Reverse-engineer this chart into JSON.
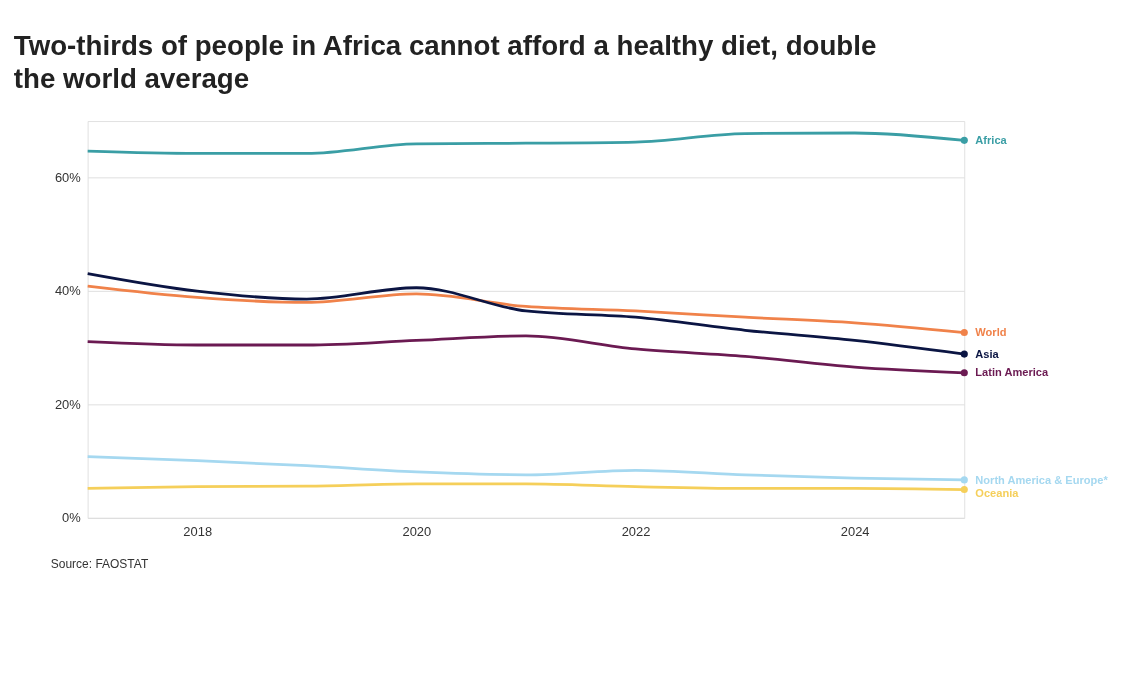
{
  "chart_data": {
    "type": "line",
    "title": "Two-thirds of people in Africa cannot afford a healthy diet, double the world average",
    "x": [
      2017,
      2018,
      2019,
      2020,
      2021,
      2022,
      2023,
      2024,
      2025
    ],
    "xlim": [
      2017,
      2025
    ],
    "xticks": [
      2018,
      2020,
      2022,
      2024
    ],
    "ylim": [
      0,
      70
    ],
    "yticks": [
      {
        "value": 0,
        "label": "0%"
      },
      {
        "value": 20,
        "label": "20%"
      },
      {
        "value": 40,
        "label": "40%"
      },
      {
        "value": 60,
        "label": "60%"
      }
    ],
    "grid": "y",
    "legend": "right",
    "marker": "none",
    "line_style": "solid",
    "series": [
      {
        "name": "Africa",
        "color": "#3a9ea5",
        "values": [
          64.7,
          64.3,
          64.3,
          66.0,
          66.1,
          66.3,
          67.8,
          67.9,
          66.6
        ]
      },
      {
        "name": "World",
        "color": "#f0824a",
        "values": [
          40.9,
          38.9,
          38.0,
          39.5,
          37.3,
          36.5,
          35.4,
          34.4,
          32.7
        ]
      },
      {
        "name": "Asia",
        "color": "#0b1543",
        "values": [
          43.1,
          40.0,
          38.6,
          40.6,
          36.5,
          35.4,
          33.1,
          31.3,
          28.9
        ]
      },
      {
        "name": "Latin America",
        "color": "#6b1a52",
        "values": [
          31.1,
          30.5,
          30.5,
          31.3,
          32.1,
          29.8,
          28.5,
          26.6,
          25.6
        ]
      },
      {
        "name": "North America & Europe*",
        "color": "#a5d8f0",
        "values": [
          10.8,
          10.1,
          9.2,
          8.1,
          7.6,
          8.4,
          7.6,
          7.0,
          6.7
        ]
      },
      {
        "name": "Oceania",
        "color": "#f5cf5a",
        "values": [
          5.2,
          5.5,
          5.6,
          6.0,
          6.0,
          5.5,
          5.2,
          5.2,
          5.0
        ]
      }
    ],
    "annotations": [
      "Source: FAOSTAT"
    ]
  }
}
